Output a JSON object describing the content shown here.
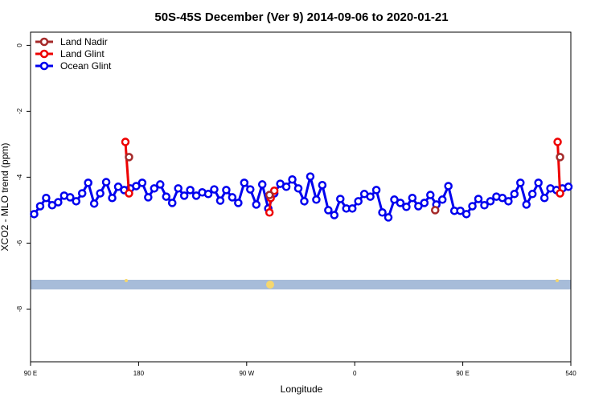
{
  "chart_data": {
    "type": "line",
    "title": "50S-45S December (Ver 9)   2014-09-06 to 2020-01-21",
    "xlabel": "Longitude",
    "ylabel": "XCO2 - MLO trend (ppm)",
    "xlim": [
      90,
      540
    ],
    "ylim": [
      -9.6,
      0.4
    ],
    "xticks": [
      {
        "value": 90,
        "label": "90 E"
      },
      180,
      {
        "value": 270,
        "label": "90 W"
      },
      {
        "value": 360,
        "label": "0"
      },
      {
        "value": 450,
        "label": "90 E"
      },
      540
    ],
    "yticks": [
      0,
      -2,
      -4,
      -6,
      -8
    ],
    "legend": "top-left",
    "series": [
      {
        "name": "Land Nadir",
        "color": "#a52a2a",
        "x": [
          172,
          null,
          289,
          null,
          427,
          null,
          531
        ],
        "values": [
          -3.39,
          null,
          -4.54,
          null,
          -5.0,
          null,
          -3.39
        ]
      },
      {
        "name": "Land Glint",
        "color": "#ee0000",
        "x": [
          169,
          172,
          null,
          289,
          290,
          293,
          null,
          529,
          531
        ],
        "values": [
          -2.93,
          -4.49,
          null,
          -5.07,
          -4.63,
          -4.41,
          null,
          -2.93,
          -4.49
        ]
      },
      {
        "name": "Ocean Glint",
        "color": "#0000ee",
        "x": [
          93,
          98,
          103,
          108,
          113,
          118,
          123,
          128,
          133,
          138,
          143,
          148,
          153,
          158,
          163,
          168,
          173,
          178,
          183,
          188,
          193,
          198,
          203,
          208,
          213,
          218,
          223,
          228,
          233,
          238,
          243,
          248,
          253,
          258,
          263,
          268,
          273,
          278,
          283,
          288,
          293,
          298,
          303,
          308,
          313,
          318,
          323,
          328,
          333,
          338,
          343,
          348,
          353,
          358,
          363,
          368,
          373,
          378,
          383,
          388,
          393,
          398,
          403,
          408,
          413,
          418,
          423,
          428,
          433,
          438,
          443,
          448,
          453,
          458,
          463,
          468,
          473,
          478,
          483,
          488,
          493,
          498,
          503,
          508,
          513,
          518,
          523,
          528,
          533,
          538
        ],
        "values": [
          -5.12,
          -4.88,
          -4.63,
          -4.85,
          -4.76,
          -4.56,
          -4.61,
          -4.73,
          -4.49,
          -4.17,
          -4.8,
          -4.49,
          -4.15,
          -4.63,
          -4.29,
          -4.39,
          -4.34,
          -4.27,
          -4.17,
          -4.61,
          -4.34,
          -4.22,
          -4.59,
          -4.78,
          -4.34,
          -4.56,
          -4.39,
          -4.56,
          -4.46,
          -4.51,
          -4.37,
          -4.71,
          -4.39,
          -4.61,
          -4.78,
          -4.17,
          -4.37,
          -4.83,
          -4.22,
          -4.95,
          -4.49,
          -4.2,
          -4.29,
          -4.07,
          -4.34,
          -4.73,
          -3.98,
          -4.68,
          -4.24,
          -5.0,
          -5.15,
          -4.66,
          -4.95,
          -4.95,
          -4.73,
          -4.51,
          -4.59,
          -4.39,
          -5.07,
          -5.22,
          -4.68,
          -4.78,
          -4.9,
          -4.63,
          -4.88,
          -4.78,
          -4.54,
          -4.83,
          -4.68,
          -4.27,
          -5.02,
          -5.02,
          -5.12,
          -4.88,
          -4.66,
          -4.85,
          -4.73,
          -4.59,
          -4.63,
          -4.73,
          -4.51,
          -4.17,
          -4.83,
          -4.51,
          -4.17,
          -4.63,
          -4.34,
          -4.39,
          -4.34,
          -4.29
        ]
      }
    ]
  }
}
